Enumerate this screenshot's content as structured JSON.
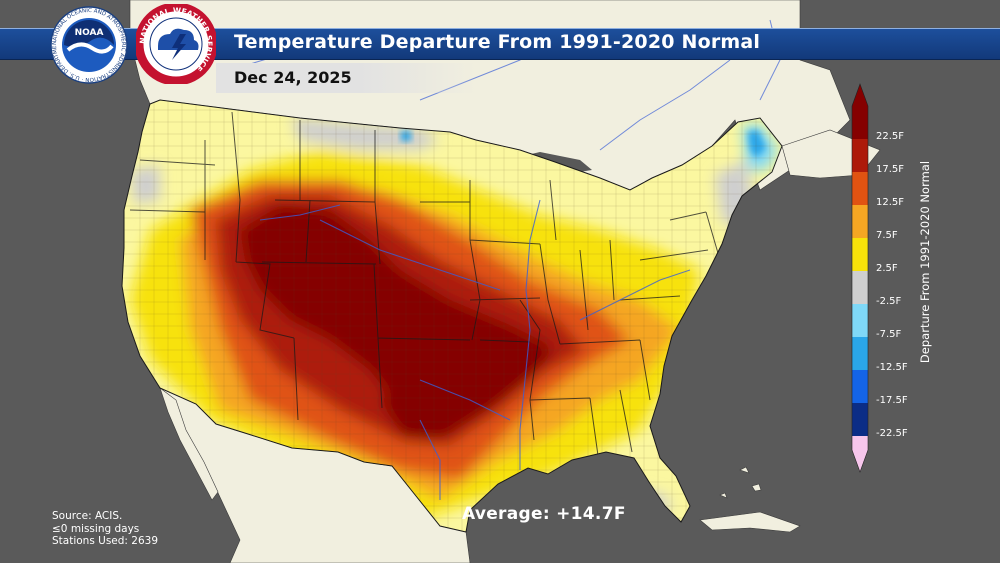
{
  "title": "Temperature Departure From 1991-2020 Normal",
  "date": "Dec 24, 2025",
  "average_label": "Average: +14.7F",
  "source_lines": [
    "Source: ACIS.",
    "≤0 missing days",
    "Stations Used: 2639"
  ],
  "legend": {
    "title": "Departure From 1991-2020 Normal",
    "ticks": [
      "22.5F",
      "17.5F",
      "12.5F",
      "7.5F",
      "2.5F",
      "-2.5F",
      "-7.5F",
      "-12.5F",
      "-17.5F",
      "-22.5F"
    ],
    "colors": [
      "#850000",
      "#ad1a0a",
      "#e05312",
      "#f5a623",
      "#f7e20a",
      "#fbf7a0",
      "#cfcfcf",
      "#7fd8f7",
      "#2aa6e8",
      "#1464e6",
      "#0b2d86",
      "#f7c6ec"
    ]
  },
  "logos": {
    "noaa": {
      "label": "NOAA",
      "ring_text": "NATIONAL OCEANIC AND ATMOSPHERIC ADMINISTRATION · U.S. DEPARTMENT OF COMMERCE"
    },
    "nws": {
      "ring_text": "NATIONAL WEATHER SERVICE"
    }
  },
  "colors": {
    "land": "#f1efdf",
    "water": "#585858",
    "title_bar": "#1a4a94",
    "river": "#3a5fd6"
  }
}
